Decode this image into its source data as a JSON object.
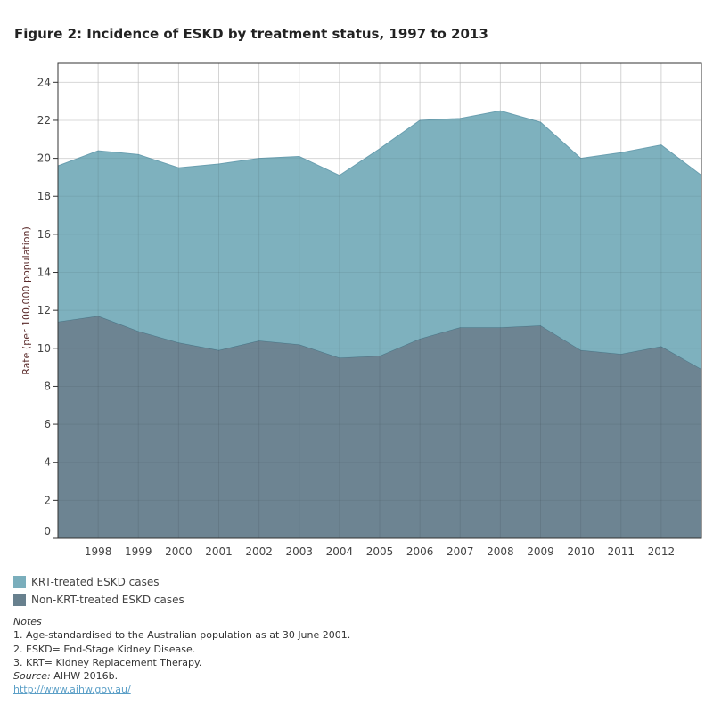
{
  "title": "Figure 2: Incidence of ESKD by treatment status, 1997 to 2013",
  "chart_data": {
    "type": "area",
    "stacked": true,
    "title": "Figure 2: Incidence of ESKD by treatment status, 1997 to 2013",
    "xlabel": "",
    "ylabel": "Rate (per 100,000 population)",
    "x": [
      1997,
      1998,
      1999,
      2000,
      2001,
      2002,
      2003,
      2004,
      2005,
      2006,
      2007,
      2008,
      2009,
      2010,
      2011,
      2012,
      2013
    ],
    "xtick_labels": [
      "1998",
      "1999",
      "2000",
      "2001",
      "2002",
      "2003",
      "2004",
      "2005",
      "2006",
      "2007",
      "2008",
      "2009",
      "2010",
      "2011",
      "2012"
    ],
    "xlim": [
      1997,
      2013
    ],
    "ylim": [
      0,
      25
    ],
    "yticks": [
      0,
      2,
      4,
      6,
      8,
      10,
      12,
      14,
      16,
      18,
      20,
      22,
      24
    ],
    "grid": true,
    "legend_position": "bottom-left",
    "series": [
      {
        "name": "Non-KRT-treated ESKD cases",
        "color": "#68808e",
        "values": [
          11.4,
          11.7,
          10.9,
          10.3,
          9.9,
          10.4,
          10.2,
          9.5,
          9.6,
          10.5,
          11.1,
          11.1,
          11.2,
          9.9,
          9.7,
          10.1,
          8.9
        ]
      },
      {
        "name": "KRT-treated ESKD cases",
        "color": "#7aaebc",
        "values": [
          8.2,
          8.7,
          9.3,
          9.2,
          9.8,
          9.6,
          9.9,
          9.6,
          10.9,
          11.5,
          11.0,
          11.4,
          10.7,
          10.1,
          10.6,
          10.6,
          10.2
        ]
      }
    ]
  },
  "legend": [
    "KRT-treated ESKD cases",
    "Non-KRT-treated ESKD cases"
  ],
  "notes": {
    "heading": "Notes",
    "lines": [
      "1. Age-standardised to the Australian population as at 30 June 2001.",
      "2. ESKD= End-Stage Kidney Disease.",
      "3. KRT= Kidney Replacement Therapy."
    ],
    "source_label": "Source:",
    "source": "AIHW 2016b.",
    "link": "http://www.aihw.gov.au/"
  }
}
